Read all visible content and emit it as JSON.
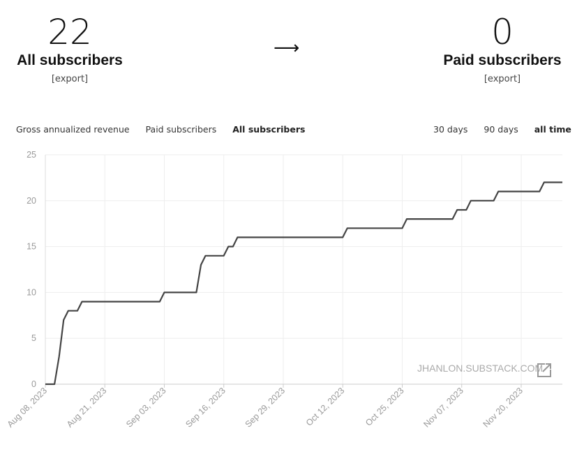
{
  "stats": {
    "all": {
      "value": "22",
      "label": "All subscribers",
      "export": "[export]"
    },
    "arrow": "⟶",
    "paid": {
      "value": "0",
      "label": "Paid subscribers",
      "export": "[export]"
    }
  },
  "metric_tabs": [
    {
      "label": "Gross annualized revenue",
      "active": false
    },
    {
      "label": "Paid subscribers",
      "active": false
    },
    {
      "label": "All subscribers",
      "active": true
    }
  ],
  "range_tabs": [
    {
      "label": "30 days",
      "active": false
    },
    {
      "label": "90 days",
      "active": false
    },
    {
      "label": "all time",
      "active": true
    }
  ],
  "watermark": "JHANLON.SUBSTACK.COM",
  "colors": {
    "line": "#444444",
    "grid": "#eeeeee",
    "axis_text": "#999999"
  },
  "chart_data": {
    "type": "line",
    "title": "",
    "xlabel": "",
    "ylabel": "",
    "ylim": [
      0,
      25
    ],
    "yticks": [
      0,
      5,
      10,
      15,
      20,
      25
    ],
    "xlim": [
      "2023-08-08",
      "2023-11-29"
    ],
    "xticks": [
      "Aug 08, 2023",
      "Aug 21, 2023",
      "Sep 03, 2023",
      "Sep 16, 2023",
      "Sep 29, 2023",
      "Oct 12, 2023",
      "Oct 25, 2023",
      "Nov 07, 2023",
      "Nov 20, 2023"
    ],
    "grid": true,
    "series": [
      {
        "points": [
          [
            "2023-08-08",
            0
          ],
          [
            "2023-08-10",
            0
          ],
          [
            "2023-08-11",
            3
          ],
          [
            "2023-08-12",
            7
          ],
          [
            "2023-08-13",
            8
          ],
          [
            "2023-08-15",
            8
          ],
          [
            "2023-08-16",
            9
          ],
          [
            "2023-09-02",
            9
          ],
          [
            "2023-09-03",
            10
          ],
          [
            "2023-09-10",
            10
          ],
          [
            "2023-09-11",
            13
          ],
          [
            "2023-09-12",
            14
          ],
          [
            "2023-09-16",
            14
          ],
          [
            "2023-09-17",
            15
          ],
          [
            "2023-09-18",
            15
          ],
          [
            "2023-09-19",
            16
          ],
          [
            "2023-10-12",
            16
          ],
          [
            "2023-10-13",
            17
          ],
          [
            "2023-10-25",
            17
          ],
          [
            "2023-10-26",
            18
          ],
          [
            "2023-11-05",
            18
          ],
          [
            "2023-11-06",
            19
          ],
          [
            "2023-11-08",
            19
          ],
          [
            "2023-11-09",
            20
          ],
          [
            "2023-11-14",
            20
          ],
          [
            "2023-11-15",
            21
          ],
          [
            "2023-11-24",
            21
          ],
          [
            "2023-11-25",
            22
          ],
          [
            "2023-11-29",
            22
          ]
        ]
      }
    ]
  }
}
